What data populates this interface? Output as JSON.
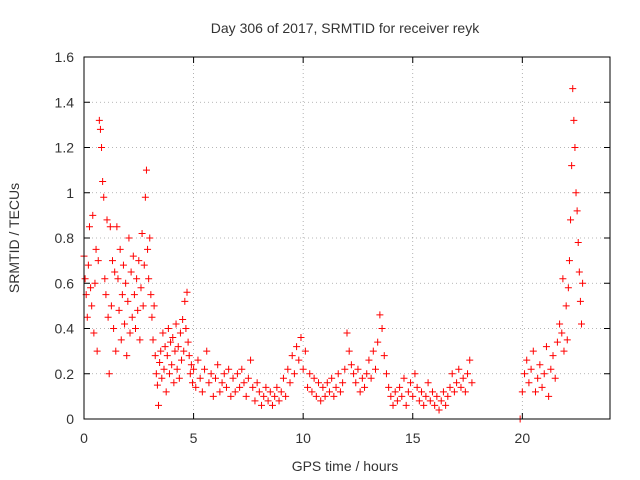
{
  "chart_data": {
    "type": "scatter",
    "title": "Day 306 of 2017, SRMTID for receiver reyk",
    "xlabel": "GPS time / hours",
    "ylabel": "SRMTID / TECUs",
    "xlim": [
      0,
      24
    ],
    "ylim": [
      0,
      1.6
    ],
    "xticks": [
      0,
      5,
      10,
      15,
      20
    ],
    "xtick_labels": [
      "0",
      "5",
      "10",
      "15",
      "20"
    ],
    "yticks": [
      0,
      0.2,
      0.4,
      0.6,
      0.8,
      1.0,
      1.2,
      1.4,
      1.6
    ],
    "ytick_labels": [
      "0",
      "0.2",
      "0.4",
      "0.6",
      "0.8",
      "1",
      "1.2",
      "1.4",
      "1.6"
    ],
    "grid": true,
    "marker": "+",
    "series": [
      {
        "name": "reyk",
        "color": "#ff0000",
        "points": [
          [
            0.0,
            0.72
          ],
          [
            0.05,
            0.62
          ],
          [
            0.1,
            0.55
          ],
          [
            0.15,
            0.45
          ],
          [
            0.2,
            0.68
          ],
          [
            0.25,
            0.85
          ],
          [
            0.3,
            0.58
          ],
          [
            0.35,
            0.5
          ],
          [
            0.4,
            0.9
          ],
          [
            0.45,
            0.38
          ],
          [
            0.5,
            0.6
          ],
          [
            0.55,
            0.75
          ],
          [
            0.6,
            0.3
          ],
          [
            0.65,
            0.7
          ],
          [
            0.7,
            1.32
          ],
          [
            0.75,
            1.28
          ],
          [
            0.8,
            1.2
          ],
          [
            0.85,
            1.05
          ],
          [
            0.9,
            0.98
          ],
          [
            0.95,
            0.62
          ],
          [
            1.0,
            0.55
          ],
          [
            1.05,
            0.88
          ],
          [
            1.1,
            0.45
          ],
          [
            1.15,
            0.2
          ],
          [
            1.2,
            0.85
          ],
          [
            1.25,
            0.5
          ],
          [
            1.3,
            0.7
          ],
          [
            1.35,
            0.4
          ],
          [
            1.4,
            0.65
          ],
          [
            1.45,
            0.3
          ],
          [
            1.5,
            0.85
          ],
          [
            1.55,
            0.62
          ],
          [
            1.6,
            0.48
          ],
          [
            1.65,
            0.75
          ],
          [
            1.7,
            0.35
          ],
          [
            1.75,
            0.55
          ],
          [
            1.8,
            0.68
          ],
          [
            1.85,
            0.42
          ],
          [
            1.9,
            0.6
          ],
          [
            1.95,
            0.28
          ],
          [
            2.0,
            0.52
          ],
          [
            2.05,
            0.8
          ],
          [
            2.1,
            0.38
          ],
          [
            2.15,
            0.65
          ],
          [
            2.2,
            0.45
          ],
          [
            2.25,
            0.72
          ],
          [
            2.3,
            0.55
          ],
          [
            2.35,
            0.4
          ],
          [
            2.4,
            0.62
          ],
          [
            2.45,
            0.48
          ],
          [
            2.5,
            0.7
          ],
          [
            2.55,
            0.35
          ],
          [
            2.6,
            0.58
          ],
          [
            2.65,
            0.82
          ],
          [
            2.7,
            0.5
          ],
          [
            2.75,
            0.68
          ],
          [
            2.8,
            0.98
          ],
          [
            2.85,
            1.1
          ],
          [
            2.9,
            0.75
          ],
          [
            2.95,
            0.62
          ],
          [
            3.0,
            0.8
          ],
          [
            3.05,
            0.55
          ],
          [
            3.1,
            0.45
          ],
          [
            3.15,
            0.35
          ],
          [
            3.2,
            0.5
          ],
          [
            3.25,
            0.28
          ],
          [
            3.3,
            0.2
          ],
          [
            3.35,
            0.15
          ],
          [
            3.4,
            0.06
          ],
          [
            3.45,
            0.25
          ],
          [
            3.5,
            0.3
          ],
          [
            3.55,
            0.18
          ],
          [
            3.6,
            0.38
          ],
          [
            3.65,
            0.22
          ],
          [
            3.7,
            0.32
          ],
          [
            3.75,
            0.12
          ],
          [
            3.8,
            0.28
          ],
          [
            3.85,
            0.4
          ],
          [
            3.9,
            0.2
          ],
          [
            3.95,
            0.34
          ],
          [
            4.0,
            0.24
          ],
          [
            4.05,
            0.36
          ],
          [
            4.1,
            0.16
          ],
          [
            4.15,
            0.3
          ],
          [
            4.2,
            0.42
          ],
          [
            4.25,
            0.22
          ],
          [
            4.3,
            0.32
          ],
          [
            4.35,
            0.18
          ],
          [
            4.4,
            0.38
          ],
          [
            4.45,
            0.26
          ],
          [
            4.5,
            0.44
          ],
          [
            4.55,
            0.3
          ],
          [
            4.6,
            0.52
          ],
          [
            4.65,
            0.4
          ],
          [
            4.7,
            0.56
          ],
          [
            4.75,
            0.34
          ],
          [
            4.8,
            0.28
          ],
          [
            4.85,
            0.2
          ],
          [
            4.9,
            0.24
          ],
          [
            4.95,
            0.16
          ],
          [
            5.0,
            0.22
          ],
          [
            5.1,
            0.14
          ],
          [
            5.2,
            0.26
          ],
          [
            5.3,
            0.18
          ],
          [
            5.4,
            0.12
          ],
          [
            5.5,
            0.22
          ],
          [
            5.6,
            0.3
          ],
          [
            5.7,
            0.16
          ],
          [
            5.8,
            0.2
          ],
          [
            5.9,
            0.1
          ],
          [
            6.0,
            0.18
          ],
          [
            6.1,
            0.24
          ],
          [
            6.2,
            0.12
          ],
          [
            6.3,
            0.16
          ],
          [
            6.4,
            0.2
          ],
          [
            6.5,
            0.14
          ],
          [
            6.6,
            0.22
          ],
          [
            6.7,
            0.1
          ],
          [
            6.8,
            0.18
          ],
          [
            6.9,
            0.12
          ],
          [
            7.0,
            0.2
          ],
          [
            7.1,
            0.14
          ],
          [
            7.2,
            0.22
          ],
          [
            7.3,
            0.16
          ],
          [
            7.4,
            0.1
          ],
          [
            7.5,
            0.18
          ],
          [
            7.6,
            0.26
          ],
          [
            7.7,
            0.14
          ],
          [
            7.8,
            0.08
          ],
          [
            7.9,
            0.16
          ],
          [
            8.0,
            0.12
          ],
          [
            8.1,
            0.06
          ],
          [
            8.2,
            0.1
          ],
          [
            8.3,
            0.14
          ],
          [
            8.4,
            0.08
          ],
          [
            8.5,
            0.12
          ],
          [
            8.6,
            0.06
          ],
          [
            8.7,
            0.1
          ],
          [
            8.8,
            0.14
          ],
          [
            8.9,
            0.08
          ],
          [
            9.0,
            0.12
          ],
          [
            9.1,
            0.18
          ],
          [
            9.2,
            0.1
          ],
          [
            9.3,
            0.22
          ],
          [
            9.4,
            0.16
          ],
          [
            9.5,
            0.28
          ],
          [
            9.6,
            0.2
          ],
          [
            9.7,
            0.32
          ],
          [
            9.8,
            0.26
          ],
          [
            9.9,
            0.36
          ],
          [
            10.0,
            0.22
          ],
          [
            10.1,
            0.3
          ],
          [
            10.2,
            0.14
          ],
          [
            10.3,
            0.2
          ],
          [
            10.4,
            0.12
          ],
          [
            10.5,
            0.18
          ],
          [
            10.6,
            0.1
          ],
          [
            10.7,
            0.16
          ],
          [
            10.8,
            0.08
          ],
          [
            10.9,
            0.14
          ],
          [
            11.0,
            0.1
          ],
          [
            11.1,
            0.16
          ],
          [
            11.2,
            0.12
          ],
          [
            11.3,
            0.18
          ],
          [
            11.4,
            0.1
          ],
          [
            11.5,
            0.14
          ],
          [
            11.6,
            0.2
          ],
          [
            11.7,
            0.12
          ],
          [
            11.8,
            0.16
          ],
          [
            11.9,
            0.22
          ],
          [
            12.0,
            0.38
          ],
          [
            12.1,
            0.3
          ],
          [
            12.2,
            0.24
          ],
          [
            12.3,
            0.2
          ],
          [
            12.4,
            0.16
          ],
          [
            12.5,
            0.22
          ],
          [
            12.6,
            0.12
          ],
          [
            12.7,
            0.18
          ],
          [
            12.8,
            0.14
          ],
          [
            12.9,
            0.2
          ],
          [
            13.0,
            0.26
          ],
          [
            13.1,
            0.18
          ],
          [
            13.2,
            0.3
          ],
          [
            13.3,
            0.22
          ],
          [
            13.4,
            0.34
          ],
          [
            13.5,
            0.46
          ],
          [
            13.6,
            0.4
          ],
          [
            13.7,
            0.28
          ],
          [
            13.8,
            0.2
          ],
          [
            13.9,
            0.14
          ],
          [
            14.0,
            0.1
          ],
          [
            14.1,
            0.06
          ],
          [
            14.2,
            0.12
          ],
          [
            14.3,
            0.08
          ],
          [
            14.4,
            0.14
          ],
          [
            14.5,
            0.1
          ],
          [
            14.6,
            0.18
          ],
          [
            14.7,
            0.06
          ],
          [
            14.8,
            0.12
          ],
          [
            14.9,
            0.16
          ],
          [
            15.0,
            0.1
          ],
          [
            15.1,
            0.2
          ],
          [
            15.2,
            0.14
          ],
          [
            15.3,
            0.08
          ],
          [
            15.4,
            0.12
          ],
          [
            15.5,
            0.06
          ],
          [
            15.6,
            0.1
          ],
          [
            15.7,
            0.16
          ],
          [
            15.8,
            0.08
          ],
          [
            15.9,
            0.12
          ],
          [
            16.0,
            0.06
          ],
          [
            16.1,
            0.1
          ],
          [
            16.2,
            0.04
          ],
          [
            16.3,
            0.08
          ],
          [
            16.4,
            0.12
          ],
          [
            16.5,
            0.06
          ],
          [
            16.6,
            0.1
          ],
          [
            16.7,
            0.14
          ],
          [
            16.8,
            0.2
          ],
          [
            16.9,
            0.12
          ],
          [
            17.0,
            0.16
          ],
          [
            17.1,
            0.22
          ],
          [
            17.2,
            0.14
          ],
          [
            17.3,
            0.18
          ],
          [
            17.4,
            0.12
          ],
          [
            17.5,
            0.2
          ],
          [
            17.6,
            0.26
          ],
          [
            17.7,
            0.16
          ],
          [
            19.9,
            0.0
          ],
          [
            20.0,
            0.12
          ],
          [
            20.1,
            0.2
          ],
          [
            20.2,
            0.26
          ],
          [
            20.3,
            0.16
          ],
          [
            20.4,
            0.22
          ],
          [
            20.5,
            0.3
          ],
          [
            20.6,
            0.12
          ],
          [
            20.7,
            0.18
          ],
          [
            20.8,
            0.24
          ],
          [
            20.9,
            0.14
          ],
          [
            21.0,
            0.2
          ],
          [
            21.1,
            0.32
          ],
          [
            21.2,
            0.1
          ],
          [
            21.3,
            0.22
          ],
          [
            21.4,
            0.28
          ],
          [
            21.5,
            0.18
          ],
          [
            21.6,
            0.34
          ],
          [
            21.7,
            0.42
          ],
          [
            21.8,
            0.38
          ],
          [
            21.85,
            0.62
          ],
          [
            21.9,
            0.3
          ],
          [
            22.0,
            0.5
          ],
          [
            22.05,
            0.35
          ],
          [
            22.1,
            0.58
          ],
          [
            22.15,
            0.7
          ],
          [
            22.2,
            0.88
          ],
          [
            22.25,
            1.12
          ],
          [
            22.3,
            1.46
          ],
          [
            22.35,
            1.32
          ],
          [
            22.4,
            1.2
          ],
          [
            22.45,
            1.0
          ],
          [
            22.5,
            0.92
          ],
          [
            22.55,
            0.78
          ],
          [
            22.6,
            0.65
          ],
          [
            22.65,
            0.52
          ],
          [
            22.7,
            0.42
          ],
          [
            22.75,
            0.6
          ]
        ]
      }
    ]
  }
}
